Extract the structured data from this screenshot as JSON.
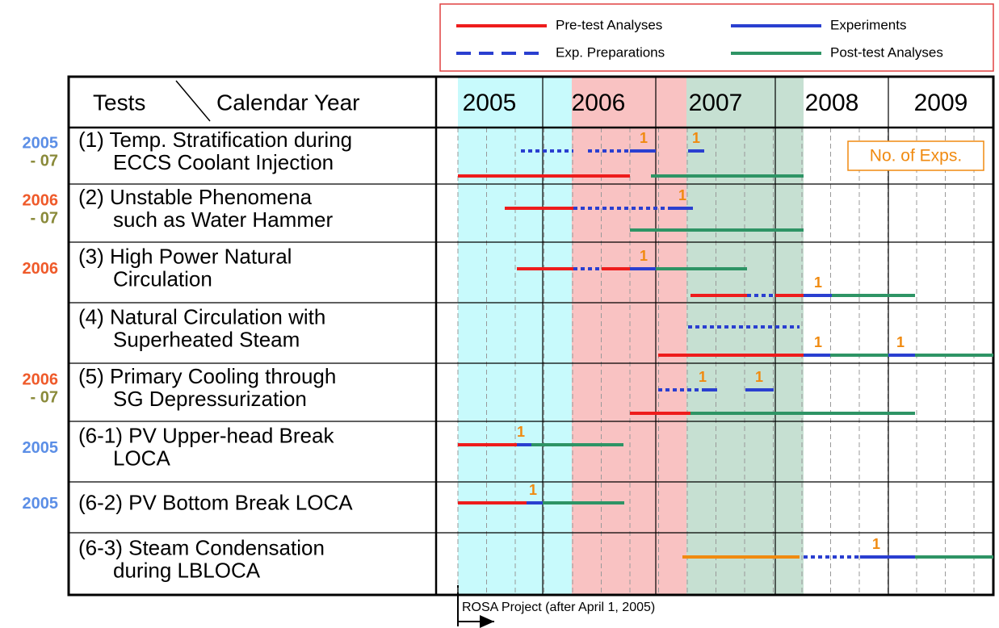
{
  "legend": [
    {
      "label": "Pre-test Analyses"
    },
    {
      "label": "Experiments"
    },
    {
      "label": "Exp. Preparations"
    },
    {
      "label": "Post-test Analyses"
    }
  ],
  "header": {
    "tests": "Tests",
    "calendar_year": "Calendar Year",
    "years": [
      "2005",
      "2006",
      "2007",
      "2008",
      "2009"
    ]
  },
  "badge": "No. of Exps.",
  "rows": [
    {
      "years": [
        "2005",
        "- 07"
      ],
      "name": [
        "(1) Temp. Stratification during",
        "ECCS Coolant Injection"
      ],
      "counts": [
        1,
        1
      ]
    },
    {
      "years": [
        "2006",
        "- 07"
      ],
      "name": [
        "(2) Unstable Phenomena",
        "such as Water Hammer"
      ],
      "counts": [
        1
      ]
    },
    {
      "years": [
        "2006"
      ],
      "name": [
        "(3) High Power Natural",
        "Circulation"
      ],
      "counts": [
        1,
        1
      ]
    },
    {
      "years": [],
      "name": [
        "(4) Natural Circulation with",
        "Superheated Steam"
      ],
      "counts": [
        1,
        1
      ]
    },
    {
      "years": [
        "2006",
        "- 07"
      ],
      "name": [
        "(5) Primary Cooling through",
        "SG Depressurization"
      ],
      "counts": [
        1,
        1
      ]
    },
    {
      "years": [
        "2005"
      ],
      "name": [
        "(6-1) PV Upper-head Break",
        "LOCA"
      ],
      "counts": [
        1
      ]
    },
    {
      "years": [
        "2005"
      ],
      "name": [
        "(6-2) PV Bottom Break LOCA"
      ],
      "counts": [
        1
      ]
    },
    {
      "years": [],
      "name": [
        "(6-3) Steam Condensation",
        "during LBLOCA"
      ],
      "counts": [
        1
      ]
    }
  ],
  "footnote": "ROSA Project (after April 1, 2005)"
}
